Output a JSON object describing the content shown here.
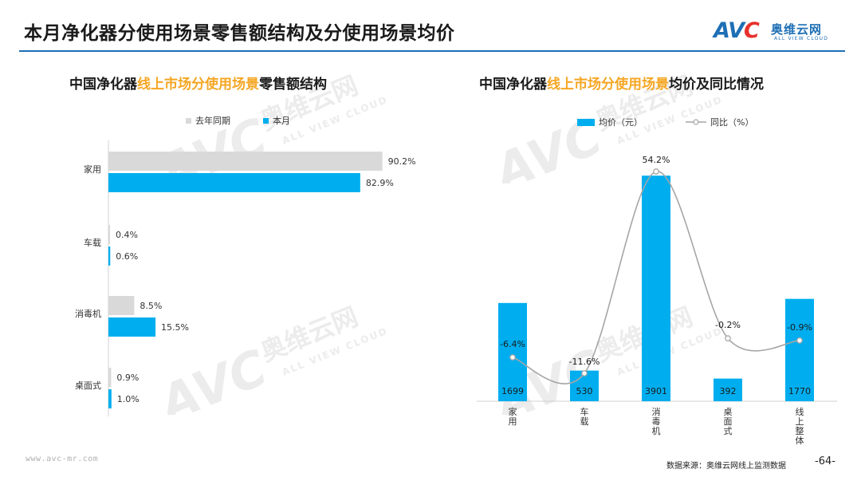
{
  "page_title": "本月净化器分使用场景零售额结构及分使用场景均价",
  "logo": {
    "text": "AVC",
    "cn": "奥维云网",
    "en": "ALL VIEW CLOUD"
  },
  "watermark": {
    "text": "AVC",
    "cn": "奥维云网",
    "en": "ALL VIEW CLOUD"
  },
  "left_chart": {
    "title_prefix": "中国净化器",
    "title_highlight": "线上市场分使用场景",
    "title_suffix": "零售额结构",
    "legend": [
      {
        "label": "去年同期",
        "color": "#d9d9d9"
      },
      {
        "label": "本月",
        "color": "#00aeef"
      }
    ]
  },
  "right_chart": {
    "title_prefix": "中国净化器",
    "title_highlight": "线上市场分使用场景",
    "title_suffix": "均价及同比情况",
    "legend": [
      {
        "label": "均价（元）",
        "color": "#00aeef"
      },
      {
        "label": "同比（%）",
        "color": "#a6a6a6"
      }
    ]
  },
  "chart_data": [
    {
      "type": "bar",
      "orientation": "horizontal",
      "categories": [
        "家用",
        "车载",
        "消毒机",
        "桌面式"
      ],
      "series": [
        {
          "name": "去年同期",
          "color": "#d9d9d9",
          "values": [
            90.2,
            0.4,
            8.5,
            0.9
          ],
          "labels": [
            "90.2%",
            "0.4%",
            "8.5%",
            "0.9%"
          ]
        },
        {
          "name": "本月",
          "color": "#00aeef",
          "values": [
            82.9,
            0.6,
            15.5,
            1.0
          ],
          "labels": [
            "82.9%",
            "0.6%",
            "15.5%",
            "1.0%"
          ]
        }
      ],
      "xlim": [
        0,
        100
      ]
    },
    {
      "type": "bar",
      "categories": [
        "家用",
        "车载",
        "消毒机",
        "桌面式",
        "线上整体"
      ],
      "series": [
        {
          "name": "均价（元）",
          "type": "bar",
          "color": "#00aeef",
          "values": [
            1699,
            530,
            3901,
            392,
            1770
          ]
        },
        {
          "name": "同比（%）",
          "type": "line",
          "smooth": true,
          "color": "#a6a6a6",
          "values": [
            -6.4,
            -11.6,
            54.2,
            -0.2,
            -0.9
          ],
          "labels": [
            "-6.4%",
            "-11.6%",
            "54.2%",
            "-0.2%",
            "-0.9%"
          ]
        }
      ],
      "ylim": [
        0,
        4000
      ],
      "y2lim": [
        -20,
        60
      ]
    }
  ],
  "footer": {
    "url": "www.avc-mr.com",
    "source": "数据来源：奥维云网线上监测数据",
    "page": "-64-"
  }
}
